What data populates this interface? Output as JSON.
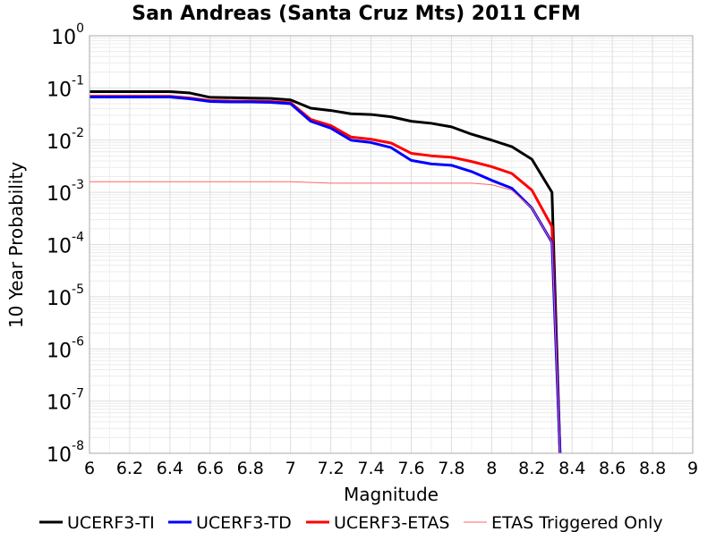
{
  "chart_data": {
    "type": "line",
    "title": "San Andreas (Santa Cruz Mts) 2011 CFM",
    "xlabel": "Magnitude",
    "ylabel": "10 Year Probability",
    "xlim": [
      6,
      9
    ],
    "ylim": [
      1e-08,
      1
    ],
    "yscale": "log",
    "grid": true,
    "legend_position": "bottom",
    "x_ticks": [
      "6",
      "6.2",
      "6.4",
      "6.6",
      "6.8",
      "7",
      "7.2",
      "7.4",
      "7.6",
      "7.8",
      "8",
      "8.2",
      "8.4",
      "8.6",
      "8.8",
      "9"
    ],
    "y_ticks": [
      {
        "base": "10",
        "exp": "0",
        "value": 1
      },
      {
        "base": "10",
        "exp": "-1",
        "value": 0.1
      },
      {
        "base": "10",
        "exp": "-2",
        "value": 0.01
      },
      {
        "base": "10",
        "exp": "-3",
        "value": 0.001
      },
      {
        "base": "10",
        "exp": "-4",
        "value": 0.0001
      },
      {
        "base": "10",
        "exp": "-5",
        "value": 1e-05
      },
      {
        "base": "10",
        "exp": "-6",
        "value": 1e-06
      },
      {
        "base": "10",
        "exp": "-7",
        "value": 1e-07
      },
      {
        "base": "10",
        "exp": "-8",
        "value": 1e-08
      }
    ],
    "series": [
      {
        "name": "UCERF3-TI",
        "color": "#000000",
        "x": [
          6.0,
          6.1,
          6.2,
          6.3,
          6.4,
          6.5,
          6.6,
          6.7,
          6.8,
          6.9,
          7.0,
          7.1,
          7.2,
          7.3,
          7.4,
          7.5,
          7.6,
          7.7,
          7.8,
          7.9,
          8.0,
          8.1,
          8.2,
          8.3,
          8.34
        ],
        "y": [
          0.085,
          0.085,
          0.085,
          0.085,
          0.085,
          0.08,
          0.066,
          0.065,
          0.064,
          0.063,
          0.059,
          0.041,
          0.037,
          0.032,
          0.031,
          0.028,
          0.023,
          0.021,
          0.018,
          0.013,
          0.01,
          0.0075,
          0.0043,
          0.001,
          1e-08
        ]
      },
      {
        "name": "UCERF3-TD",
        "color": "#0000ff",
        "x": [
          6.0,
          6.1,
          6.2,
          6.3,
          6.4,
          6.5,
          6.6,
          6.7,
          6.8,
          6.9,
          7.0,
          7.1,
          7.2,
          7.3,
          7.4,
          7.5,
          7.6,
          7.7,
          7.8,
          7.9,
          8.0,
          8.1,
          8.2,
          8.3,
          8.34
        ],
        "y": [
          0.067,
          0.067,
          0.067,
          0.067,
          0.067,
          0.062,
          0.055,
          0.054,
          0.054,
          0.053,
          0.05,
          0.023,
          0.017,
          0.01,
          0.009,
          0.0072,
          0.0041,
          0.0035,
          0.0033,
          0.0025,
          0.0017,
          0.0012,
          0.0005,
          0.00011,
          1e-08
        ]
      },
      {
        "name": "UCERF3-ETAS",
        "color": "#ff0000",
        "x": [
          6.0,
          6.1,
          6.2,
          6.3,
          6.4,
          6.5,
          6.6,
          6.7,
          6.8,
          6.9,
          7.0,
          7.1,
          7.2,
          7.3,
          7.4,
          7.5,
          7.6,
          7.7,
          7.8,
          7.9,
          8.0,
          8.1,
          8.2,
          8.3,
          8.34
        ],
        "y": [
          0.069,
          0.069,
          0.069,
          0.069,
          0.069,
          0.064,
          0.057,
          0.056,
          0.056,
          0.055,
          0.052,
          0.025,
          0.019,
          0.0115,
          0.0104,
          0.0088,
          0.0056,
          0.005,
          0.0047,
          0.0039,
          0.0031,
          0.0023,
          0.0011,
          0.00022,
          1e-08
        ]
      },
      {
        "name": "ETAS Triggered Only",
        "color": "#ff6666",
        "x": [
          6.0,
          6.5,
          7.0,
          7.2,
          7.5,
          7.9,
          8.0,
          8.1,
          8.2,
          8.3,
          8.34
        ],
        "y": [
          0.0016,
          0.0016,
          0.0016,
          0.0015,
          0.0015,
          0.0015,
          0.0014,
          0.0011,
          0.0005,
          0.00011,
          1e-08
        ]
      }
    ]
  }
}
